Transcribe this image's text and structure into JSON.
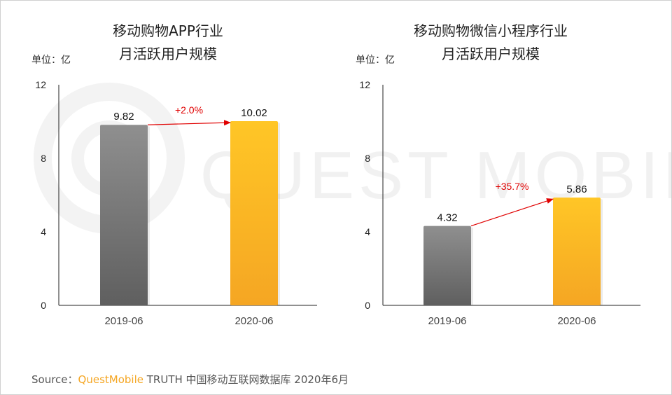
{
  "watermark": "QUEST MOBILE",
  "footer": {
    "source_label": "Source：",
    "brand": "QuestMobile",
    "rest": " TRUTH 中国移动互联网数据库 2020年6月"
  },
  "colors": {
    "bar_2019_top": "#8f8f8f",
    "bar_2019_bottom": "#5f5f5f",
    "bar_2020_top": "#ffc626",
    "bar_2020_bottom": "#f5a623",
    "growth": "#e00000",
    "axis": "#222222"
  },
  "chart_data": [
    {
      "type": "bar",
      "title_lines": [
        "移动购物APP行业",
        "月活跃用户规模"
      ],
      "unit_label": "单位：亿",
      "categories": [
        "2019-06",
        "2020-06"
      ],
      "values": [
        9.82,
        10.02
      ],
      "value_labels": [
        "9.82",
        "10.02"
      ],
      "growth_label": "+2.0%",
      "ylim": [
        0,
        12
      ],
      "yticks": [
        0,
        4,
        8,
        12
      ],
      "grid": false
    },
    {
      "type": "bar",
      "title_lines": [
        "移动购物微信小程序行业",
        "月活跃用户规模"
      ],
      "unit_label": "单位：亿",
      "categories": [
        "2019-06",
        "2020-06"
      ],
      "values": [
        4.32,
        5.86
      ],
      "value_labels": [
        "4.32",
        "5.86"
      ],
      "growth_label": "+35.7%",
      "ylim": [
        0,
        12
      ],
      "yticks": [
        0,
        4,
        8,
        12
      ],
      "grid": false
    }
  ]
}
